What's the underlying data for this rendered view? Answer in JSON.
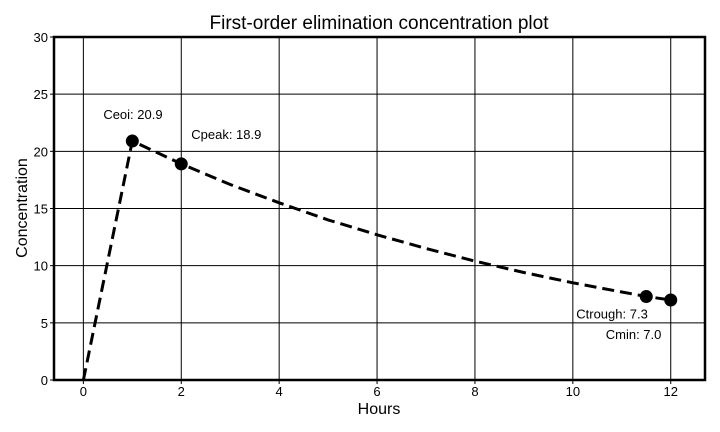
{
  "chart_data": {
    "type": "line",
    "title": "First-order elimination concentration plot",
    "xlabel": "Hours",
    "ylabel": "Concentration",
    "xlim": [
      -0.6,
      12.7
    ],
    "ylim": [
      0,
      30
    ],
    "x_ticks": [
      0,
      2,
      4,
      6,
      8,
      10,
      12
    ],
    "y_ticks": [
      0,
      5,
      10,
      15,
      20,
      25,
      30
    ],
    "grid": true,
    "colors": {
      "line": "#000000",
      "grid": "#000000"
    },
    "series": [
      {
        "x": [
          0,
          1,
          2,
          3,
          4,
          5,
          6,
          7,
          8,
          9,
          10,
          11,
          11.5,
          12
        ],
        "y": [
          0,
          20.9,
          18.9,
          17.1,
          15.5,
          14.0,
          12.7,
          11.5,
          10.4,
          9.4,
          8.5,
          7.7,
          7.3,
          7.0
        ]
      }
    ],
    "markers": [
      {
        "x": 1,
        "y": 20.9
      },
      {
        "x": 2,
        "y": 18.9
      },
      {
        "x": 11.5,
        "y": 7.3
      },
      {
        "x": 12,
        "y": 7.0
      }
    ],
    "annotations": [
      {
        "text": "Ceoi: 20.9",
        "x": 1,
        "y": 20.9
      },
      {
        "text": "Cpeak: 18.9",
        "x": 2,
        "y": 18.9
      },
      {
        "text": "Ctrough: 7.3",
        "x": 11.5,
        "y": 7.3
      },
      {
        "text": "Cmin: 7.0",
        "x": 12,
        "y": 7.0
      }
    ]
  }
}
